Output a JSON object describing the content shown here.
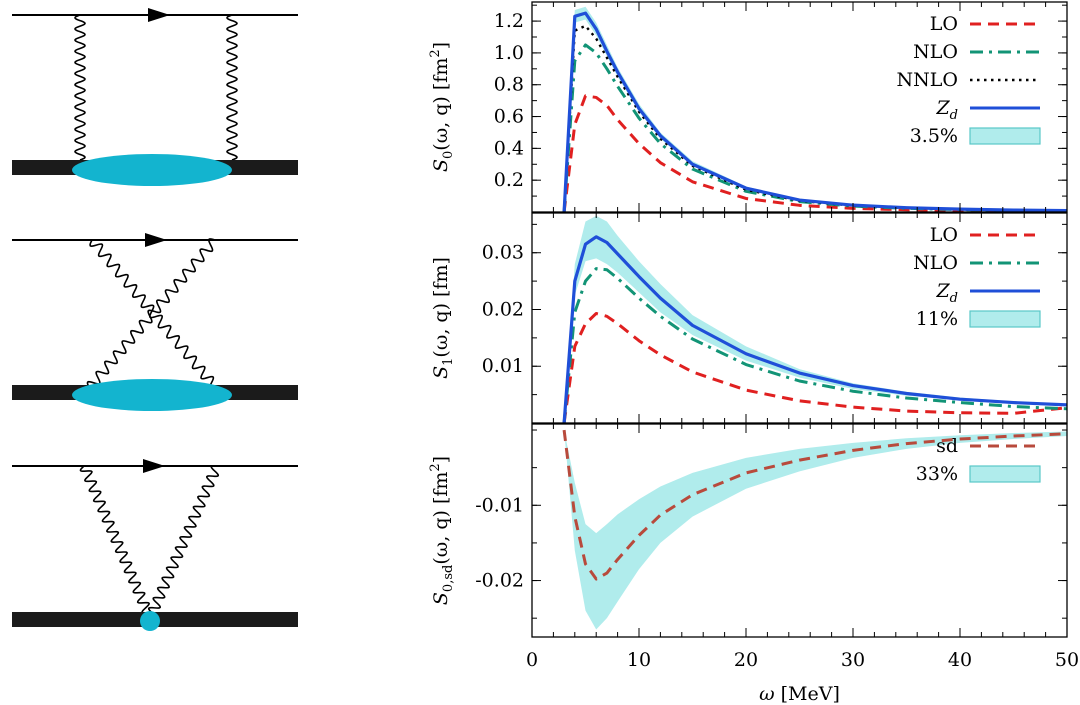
{
  "diagrams": [
    {
      "name": "two-photon-exchange-direct",
      "blob": "ellipse"
    },
    {
      "name": "two-photon-exchange-crossed",
      "blob": "ellipse"
    },
    {
      "name": "seagull-contact",
      "blob": "dot"
    }
  ],
  "colors": {
    "lo": "#e02020",
    "nlo": "#129476",
    "nnlo": "#000000",
    "zd": "#1f4fd8",
    "band": "#b0ecec",
    "band_edge": "#59c7c7",
    "sd": "#b84a3c",
    "photon": "#000000",
    "nucleus": "#1b1b1b",
    "blob": "#13b4cf"
  },
  "chart_data": [
    {
      "type": "line",
      "panel": "top",
      "ylabel": "S0(ω, q) [fm2]",
      "ylabel_parts": {
        "sym": "S",
        "sub": "0",
        "args": "(ω, q) [fm",
        "sup": "2",
        "close": "]"
      },
      "xlim": [
        0,
        50
      ],
      "ylim": [
        0,
        1.32
      ],
      "yticks": [
        0.2,
        0.4,
        0.6,
        0.8,
        1.0,
        1.2
      ],
      "ytick_labels": [
        "0.2",
        "0.4",
        "0.6",
        "0.8",
        "1.0",
        "1.2"
      ],
      "x": [
        3,
        4,
        5,
        6,
        7,
        8,
        10,
        12,
        15,
        20,
        25,
        30,
        35,
        40,
        45,
        50
      ],
      "band": {
        "label": "3.5%",
        "lower": [
          0,
          1.19,
          1.21,
          1.11,
          0.98,
          0.85,
          0.63,
          0.46,
          0.29,
          0.14,
          0.07,
          0.04,
          0.025,
          0.016,
          0.011,
          0.008
        ],
        "upper": [
          0,
          1.27,
          1.29,
          1.19,
          1.05,
          0.91,
          0.68,
          0.5,
          0.32,
          0.16,
          0.08,
          0.046,
          0.029,
          0.019,
          0.013,
          0.009
        ]
      },
      "series": [
        {
          "name": "LO",
          "style": "dashed",
          "color_key": "lo",
          "values": [
            0,
            0.55,
            0.73,
            0.72,
            0.67,
            0.58,
            0.43,
            0.31,
            0.19,
            0.085,
            0.042,
            0.023,
            0.014,
            0.009,
            0.006,
            0.004
          ]
        },
        {
          "name": "NLO",
          "style": "dashdot",
          "color_key": "nlo",
          "values": [
            0,
            0.95,
            1.05,
            1.0,
            0.9,
            0.79,
            0.59,
            0.43,
            0.27,
            0.13,
            0.065,
            0.037,
            0.023,
            0.015,
            0.01,
            0.007
          ]
        },
        {
          "name": "NNLO",
          "style": "dotted",
          "color_key": "nnlo",
          "values": [
            0,
            1.14,
            1.17,
            1.09,
            0.97,
            0.85,
            0.63,
            0.46,
            0.29,
            0.14,
            0.07,
            0.04,
            0.025,
            0.016,
            0.011,
            0.008
          ]
        },
        {
          "name": "Zd",
          "style": "solid",
          "color_key": "zd",
          "values": [
            0,
            1.23,
            1.25,
            1.15,
            1.01,
            0.88,
            0.65,
            0.48,
            0.3,
            0.15,
            0.075,
            0.043,
            0.027,
            0.018,
            0.012,
            0.0085
          ]
        }
      ],
      "legend": [
        {
          "label": "LO",
          "kind": "dashed",
          "color_key": "lo"
        },
        {
          "label": "NLO",
          "kind": "dashdot",
          "color_key": "nlo"
        },
        {
          "label": "NNLO",
          "kind": "dotted",
          "color_key": "nnlo"
        },
        {
          "label": "Zd",
          "kind": "solid",
          "color_key": "zd",
          "tex": {
            "sym": "Z",
            "sub": "d"
          }
        },
        {
          "label": "3.5%",
          "kind": "band"
        }
      ]
    },
    {
      "type": "line",
      "panel": "middle",
      "ylabel": "S1(ω, q) [fm]",
      "ylabel_parts": {
        "sym": "S",
        "sub": "1",
        "args": "(ω, q) [fm]",
        "sup": "",
        "close": ""
      },
      "xlim": [
        0,
        50
      ],
      "ylim": [
        0,
        0.037
      ],
      "yticks": [
        0.01,
        0.02,
        0.03
      ],
      "ytick_labels": [
        "0.01",
        "0.02",
        "0.03"
      ],
      "x": [
        3,
        4,
        5,
        6,
        7,
        8,
        10,
        12,
        15,
        20,
        25,
        30,
        35,
        40,
        45,
        50
      ],
      "band": {
        "label": "11%",
        "lower": [
          0,
          0.0225,
          0.0285,
          0.029,
          0.028,
          0.0265,
          0.023,
          0.0195,
          0.0155,
          0.011,
          0.008,
          0.006,
          0.0048,
          0.004,
          0.0034,
          0.003
        ],
        "upper": [
          0,
          0.028,
          0.0355,
          0.0365,
          0.0355,
          0.033,
          0.0285,
          0.0245,
          0.019,
          0.0135,
          0.0095,
          0.007,
          0.0055,
          0.0045,
          0.0038,
          0.0032
        ]
      },
      "series": [
        {
          "name": "LO",
          "style": "dashed",
          "color_key": "lo",
          "values": [
            0,
            0.0135,
            0.0175,
            0.0193,
            0.0188,
            0.0175,
            0.0145,
            0.012,
            0.009,
            0.0058,
            0.0039,
            0.0028,
            0.0021,
            0.0018,
            0.0017,
            0.0027
          ]
        },
        {
          "name": "NLO",
          "style": "dashdot",
          "color_key": "nlo",
          "values": [
            0,
            0.0195,
            0.025,
            0.0272,
            0.027,
            0.0255,
            0.022,
            0.0188,
            0.0148,
            0.0103,
            0.0074,
            0.0056,
            0.0044,
            0.0036,
            0.0029,
            0.0025
          ]
        },
        {
          "name": "Zd",
          "style": "solid",
          "color_key": "zd",
          "values": [
            0,
            0.025,
            0.0315,
            0.0328,
            0.0318,
            0.0298,
            0.0258,
            0.022,
            0.0172,
            0.0122,
            0.0088,
            0.0066,
            0.0052,
            0.0042,
            0.0036,
            0.0032
          ]
        }
      ],
      "legend": [
        {
          "label": "LO",
          "kind": "dashed",
          "color_key": "lo"
        },
        {
          "label": "NLO",
          "kind": "dashdot",
          "color_key": "nlo"
        },
        {
          "label": "Zd",
          "kind": "solid",
          "color_key": "zd",
          "tex": {
            "sym": "Z",
            "sub": "d"
          }
        },
        {
          "label": "11%",
          "kind": "band"
        }
      ]
    },
    {
      "type": "line",
      "panel": "bottom",
      "ylabel": "S0,sd(ω, q) [fm2]",
      "ylabel_parts": {
        "sym": "S",
        "sub": "0,sd",
        "args": "(ω, q) [fm",
        "sup": "2",
        "close": "]"
      },
      "xlim": [
        0,
        50
      ],
      "ylim": [
        -0.0275,
        0.0008
      ],
      "yticks": [
        -0.01,
        -0.02
      ],
      "ytick_labels": [
        "-0.01",
        "-0.02"
      ],
      "xticks": [
        0,
        10,
        20,
        30,
        40,
        50
      ],
      "xtick_labels": [
        "0",
        "10",
        "20",
        "30",
        "40",
        "50"
      ],
      "xlabel": "ω [MeV]",
      "xlabel_parts": {
        "sym": "ω",
        "rest": " [MeV]"
      },
      "x": [
        3,
        4,
        5,
        6,
        7,
        8,
        10,
        12,
        15,
        20,
        25,
        30,
        35,
        40,
        45,
        50
      ],
      "band": {
        "label": "33%",
        "lower": [
          0,
          -0.016,
          -0.024,
          -0.0265,
          -0.025,
          -0.0228,
          -0.0185,
          -0.015,
          -0.0115,
          -0.0078,
          -0.0055,
          -0.0037,
          -0.0025,
          -0.0017,
          -0.0012,
          -0.0008
        ],
        "upper": [
          0,
          -0.007,
          -0.0125,
          -0.0137,
          -0.0125,
          -0.0112,
          -0.0092,
          -0.0075,
          -0.0057,
          -0.0037,
          -0.0025,
          -0.0017,
          -0.0011,
          -0.0007,
          -0.0004,
          -0.0002
        ]
      },
      "series": [
        {
          "name": "sd",
          "style": "dashed",
          "color_key": "sd",
          "values": [
            0,
            -0.0115,
            -0.0178,
            -0.0198,
            -0.019,
            -0.0172,
            -0.014,
            -0.0113,
            -0.0086,
            -0.0057,
            -0.004,
            -0.0027,
            -0.0018,
            -0.0012,
            -0.0008,
            -0.0005
          ]
        }
      ],
      "legend": [
        {
          "label": "sd",
          "kind": "dashed",
          "color_key": "sd"
        },
        {
          "label": "33%",
          "kind": "band"
        }
      ]
    }
  ]
}
